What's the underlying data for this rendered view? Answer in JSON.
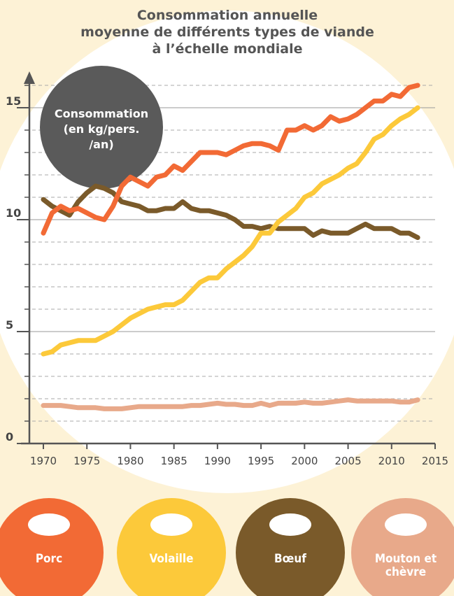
{
  "chart_data": {
    "type": "line",
    "title": [
      "Consommation annuelle",
      "moyenne de différents types de viande",
      "à l’échelle mondiale"
    ],
    "ylabel": [
      "Consommation",
      "(en kg/pers.",
      "/an)"
    ],
    "x": [
      1970,
      1971,
      1972,
      1973,
      1974,
      1975,
      1976,
      1977,
      1978,
      1979,
      1980,
      1981,
      1982,
      1983,
      1984,
      1985,
      1986,
      1987,
      1988,
      1989,
      1990,
      1991,
      1992,
      1993,
      1994,
      1995,
      1996,
      1997,
      1998,
      1999,
      2000,
      2001,
      2002,
      2003,
      2004,
      2005,
      2006,
      2007,
      2008,
      2009,
      2010,
      2011,
      2012,
      2013
    ],
    "series": [
      {
        "name": "Porc",
        "color": "#f26a35",
        "values": [
          9.4,
          10.3,
          10.6,
          10.4,
          10.5,
          10.3,
          10.1,
          10.0,
          10.6,
          11.5,
          11.9,
          11.7,
          11.5,
          11.9,
          12.0,
          12.4,
          12.2,
          12.6,
          13.0,
          13.0,
          13.0,
          12.9,
          13.1,
          13.3,
          13.4,
          13.4,
          13.3,
          13.1,
          14.0,
          14.0,
          14.2,
          14.0,
          14.2,
          14.6,
          14.4,
          14.5,
          14.7,
          15.0,
          15.3,
          15.3,
          15.6,
          15.5,
          15.9,
          16.0
        ]
      },
      {
        "name": "Volaille",
        "color": "#fcc93a",
        "values": [
          4.0,
          4.1,
          4.4,
          4.5,
          4.6,
          4.6,
          4.6,
          4.8,
          5.0,
          5.3,
          5.6,
          5.8,
          6.0,
          6.1,
          6.2,
          6.2,
          6.4,
          6.8,
          7.2,
          7.4,
          7.4,
          7.8,
          8.1,
          8.4,
          8.8,
          9.4,
          9.4,
          9.9,
          10.2,
          10.5,
          11.0,
          11.2,
          11.6,
          11.8,
          12.0,
          12.3,
          12.5,
          13.0,
          13.6,
          13.8,
          14.2,
          14.5,
          14.7,
          15.0
        ]
      },
      {
        "name": "Bœuf",
        "color": "#7a5a2a",
        "values": [
          10.9,
          10.6,
          10.4,
          10.2,
          10.8,
          11.2,
          11.5,
          11.4,
          11.2,
          10.8,
          10.7,
          10.6,
          10.4,
          10.4,
          10.5,
          10.5,
          10.8,
          10.5,
          10.4,
          10.4,
          10.3,
          10.2,
          10.0,
          9.7,
          9.7,
          9.6,
          9.7,
          9.6,
          9.6,
          9.6,
          9.6,
          9.3,
          9.5,
          9.4,
          9.4,
          9.4,
          9.6,
          9.8,
          9.6,
          9.6,
          9.6,
          9.4,
          9.4,
          9.2
        ]
      },
      {
        "name": "Mouton et chèvre",
        "color": "#e8a98a",
        "values": [
          1.7,
          1.7,
          1.7,
          1.65,
          1.6,
          1.6,
          1.6,
          1.55,
          1.55,
          1.55,
          1.6,
          1.65,
          1.65,
          1.65,
          1.65,
          1.65,
          1.65,
          1.7,
          1.7,
          1.75,
          1.8,
          1.75,
          1.75,
          1.7,
          1.7,
          1.8,
          1.7,
          1.8,
          1.8,
          1.8,
          1.85,
          1.8,
          1.8,
          1.85,
          1.9,
          1.95,
          1.9,
          1.9,
          1.9,
          1.9,
          1.9,
          1.85,
          1.85,
          1.95
        ]
      }
    ],
    "xlim": [
      1970,
      2015
    ],
    "xticks": [
      1970,
      1975,
      1980,
      1985,
      1990,
      1995,
      2000,
      2005,
      2010,
      2015
    ],
    "ylim": [
      0,
      16.5
    ],
    "yticks": [
      0,
      5,
      10,
      15
    ],
    "minor_yticks": [
      1,
      2,
      3,
      4,
      6,
      7,
      8,
      9,
      11,
      12,
      13,
      14,
      16
    ],
    "grid": true
  }
}
